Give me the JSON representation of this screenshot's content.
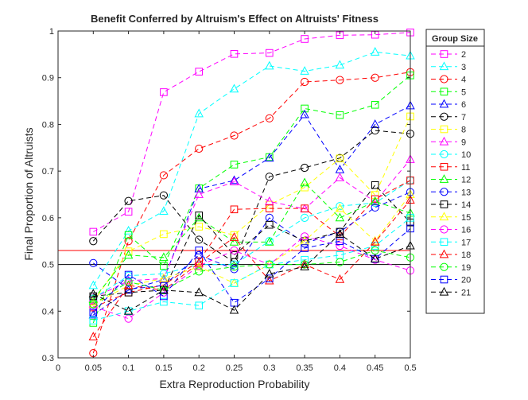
{
  "chart_data": {
    "type": "line",
    "title": "Benefit Conferred by Altruism's Effect on Altruists' Fitness",
    "xlabel": "Extra Reproduction Probability",
    "ylabel": "Final Proportion of Altruists",
    "xlim": [
      0,
      0.5
    ],
    "ylim": [
      0.3,
      1
    ],
    "xticks": [
      0,
      0.05,
      0.1,
      0.15,
      0.2,
      0.25,
      0.3,
      0.35,
      0.4,
      0.45,
      0.5
    ],
    "xtick_labels": [
      "0",
      "0.05",
      "0.1",
      "0.15",
      "0.2",
      "0.25",
      "0.3",
      "0.35",
      "0.4",
      "0.45",
      "0.5"
    ],
    "yticks": [
      0.3,
      0.4,
      0.5,
      0.6,
      0.7,
      0.8,
      0.9,
      1
    ],
    "ytick_labels": [
      "0.3",
      "0.4",
      "0.5",
      "0.6",
      "0.7",
      "0.8",
      "0.9",
      "1"
    ],
    "grid": false,
    "legend": {
      "title": "Group Size",
      "placement": "outside right"
    },
    "reference_lines": [
      {
        "y": 0.53,
        "color": "#ff0000"
      },
      {
        "y": 0.5,
        "color": "#000000"
      }
    ],
    "x": [
      0.05,
      0.1,
      0.15,
      0.2,
      0.25,
      0.3,
      0.35,
      0.4,
      0.45,
      0.5
    ],
    "series": [
      {
        "name": "2",
        "color": "#ff00ff",
        "marker": "square",
        "values": [
          0.57,
          0.613,
          0.869,
          0.913,
          0.951,
          0.953,
          0.983,
          0.991,
          0.992,
          0.997
        ]
      },
      {
        "name": "3",
        "color": "#00ffff",
        "marker": "triangle",
        "values": [
          0.455,
          0.572,
          0.614,
          0.823,
          0.876,
          0.925,
          0.914,
          0.927,
          0.955,
          0.947
        ]
      },
      {
        "name": "4",
        "color": "#ff0000",
        "marker": "circle",
        "values": [
          0.31,
          0.55,
          0.691,
          0.748,
          0.776,
          0.813,
          0.891,
          0.895,
          0.9,
          0.912
        ]
      },
      {
        "name": "5",
        "color": "#00ff00",
        "marker": "square",
        "values": [
          0.375,
          0.563,
          0.497,
          0.663,
          0.714,
          0.73,
          0.834,
          0.82,
          0.842,
          0.905
        ]
      },
      {
        "name": "6",
        "color": "#0000ff",
        "marker": "triangle",
        "values": [
          0.392,
          0.445,
          0.468,
          0.662,
          0.68,
          0.728,
          0.821,
          0.703,
          0.8,
          0.84
        ]
      },
      {
        "name": "7",
        "color": "#000000",
        "marker": "circle",
        "values": [
          0.55,
          0.636,
          0.648,
          0.553,
          0.505,
          0.688,
          0.707,
          0.728,
          0.787,
          0.78
        ]
      },
      {
        "name": "8",
        "color": "#ffff00",
        "marker": "square",
        "values": [
          0.42,
          0.528,
          0.565,
          0.581,
          0.563,
          0.628,
          0.665,
          0.727,
          0.649,
          0.817
        ]
      },
      {
        "name": "9",
        "color": "#ff00ff",
        "marker": "triangle",
        "values": [
          0.428,
          0.465,
          0.47,
          0.65,
          0.677,
          0.635,
          0.619,
          0.686,
          0.634,
          0.725
        ]
      },
      {
        "name": "10",
        "color": "#00ffff",
        "marker": "circle",
        "values": [
          0.427,
          0.476,
          0.48,
          0.5,
          0.5,
          0.55,
          0.6,
          0.625,
          0.632,
          0.68
        ]
      },
      {
        "name": "11",
        "color": "#ff0000",
        "marker": "square",
        "values": [
          0.408,
          0.44,
          0.456,
          0.507,
          0.618,
          0.62,
          0.62,
          0.56,
          0.64,
          0.68
        ]
      },
      {
        "name": "12",
        "color": "#00ff00",
        "marker": "triangle",
        "values": [
          0.425,
          0.52,
          0.515,
          0.6,
          0.548,
          0.548,
          0.675,
          0.6,
          0.635,
          0.61
        ]
      },
      {
        "name": "13",
        "color": "#0000ff",
        "marker": "circle",
        "values": [
          0.503,
          0.447,
          0.455,
          0.52,
          0.49,
          0.6,
          0.545,
          0.57,
          0.622,
          0.655
        ]
      },
      {
        "name": "14",
        "color": "#000000",
        "marker": "square",
        "values": [
          0.432,
          0.44,
          0.445,
          0.605,
          0.52,
          0.585,
          0.55,
          0.57,
          0.67,
          0.59
        ]
      },
      {
        "name": "15",
        "color": "#ffff00",
        "marker": "triangle",
        "values": [
          0.415,
          0.455,
          0.47,
          0.495,
          0.46,
          0.5,
          0.55,
          0.62,
          0.55,
          0.65
        ]
      },
      {
        "name": "16",
        "color": "#ff00ff",
        "marker": "circle",
        "values": [
          0.41,
          0.384,
          0.44,
          0.497,
          0.53,
          0.5,
          0.56,
          0.54,
          0.51,
          0.487
        ]
      },
      {
        "name": "17",
        "color": "#00ffff",
        "marker": "square",
        "values": [
          0.38,
          0.4,
          0.42,
          0.412,
          0.46,
          0.5,
          0.51,
          0.52,
          0.54,
          0.6
        ]
      },
      {
        "name": "18",
        "color": "#ff0000",
        "marker": "triangle",
        "values": [
          0.345,
          0.455,
          0.445,
          0.503,
          0.558,
          0.465,
          0.5,
          0.468,
          0.548,
          0.638
        ]
      },
      {
        "name": "19",
        "color": "#00ff00",
        "marker": "circle",
        "values": [
          0.415,
          0.463,
          0.445,
          0.485,
          0.495,
          0.5,
          0.5,
          0.505,
          0.53,
          0.515
        ]
      },
      {
        "name": "20",
        "color": "#0000ff",
        "marker": "square",
        "values": [
          0.397,
          0.478,
          0.432,
          0.53,
          0.418,
          0.47,
          0.535,
          0.55,
          0.512,
          0.577
        ]
      },
      {
        "name": "21",
        "color": "#000000",
        "marker": "triangle",
        "values": [
          0.437,
          0.4,
          0.445,
          0.44,
          0.402,
          0.48,
          0.495,
          0.565,
          0.512,
          0.54
        ]
      }
    ]
  }
}
